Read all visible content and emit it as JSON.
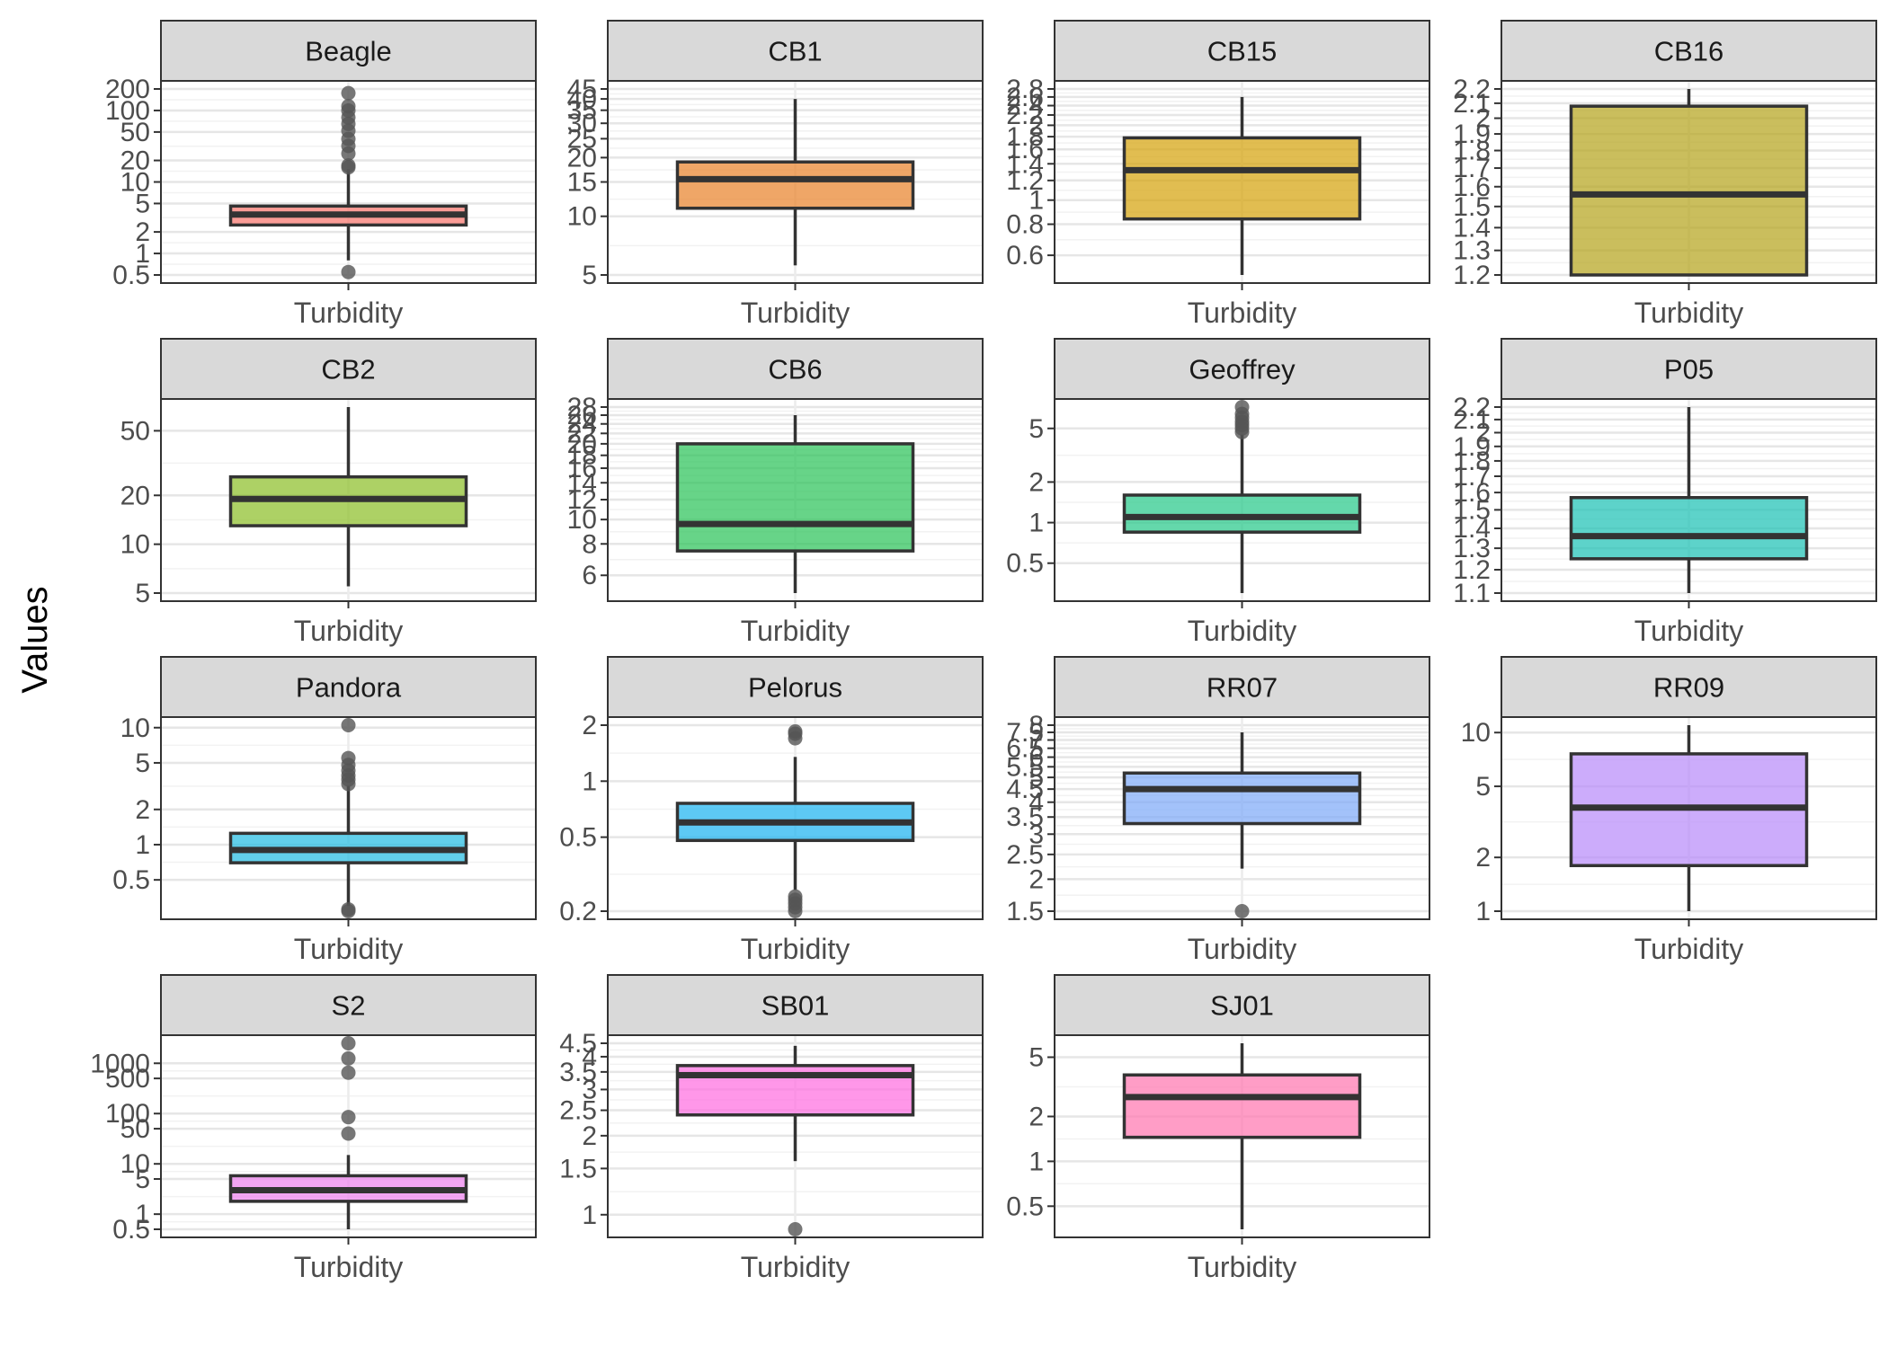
{
  "chart_data": {
    "type": "box",
    "ylabel": "Values",
    "xlabel": "",
    "y_scale": "log10",
    "grid": true,
    "category": "Turbidity",
    "panels": [
      {
        "name": "Beagle",
        "color": "#F8766D",
        "ticks": [
          {
            "v": 0.5,
            "label": "0.5"
          },
          {
            "v": 1,
            "label": "1"
          },
          {
            "v": 2,
            "label": "2"
          },
          {
            "v": 5,
            "label": "5"
          },
          {
            "v": 10,
            "label": "10"
          },
          {
            "v": 20,
            "label": "20"
          },
          {
            "v": 50,
            "label": "50"
          },
          {
            "v": 100,
            "label": "100"
          },
          {
            "v": 200,
            "label": "200"
          }
        ],
        "box": {
          "whisker_low": 0.8,
          "q1": 2.5,
          "median": 3.5,
          "q3": 4.6,
          "whisker_high": 15
        },
        "outliers": [
          0.55,
          16,
          17,
          25,
          32,
          40,
          52,
          65,
          80,
          100,
          115,
          175
        ]
      },
      {
        "name": "CB1",
        "color": "#E9842C",
        "ticks": [
          {
            "v": 5,
            "label": "5"
          },
          {
            "v": 10,
            "label": "10"
          },
          {
            "v": 15,
            "label": "15"
          },
          {
            "v": 20,
            "label": "20"
          },
          {
            "v": 25,
            "label": "25"
          },
          {
            "v": 30,
            "label": "30"
          },
          {
            "v": 35,
            "label": "35"
          },
          {
            "v": 40,
            "label": "40"
          },
          {
            "v": 45,
            "label": "45"
          }
        ],
        "box": {
          "whisker_low": 5.6,
          "q1": 11,
          "median": 15.5,
          "q3": 19,
          "whisker_high": 40
        },
        "outliers": []
      },
      {
        "name": "CB15",
        "color": "#D6A30E",
        "ticks": [
          {
            "v": 0.6,
            "label": "0.6"
          },
          {
            "v": 0.8,
            "label": "0.8"
          },
          {
            "v": 1,
            "label": "1"
          },
          {
            "v": 1.2,
            "label": "1.2"
          },
          {
            "v": 1.4,
            "label": "1.4"
          },
          {
            "v": 1.6,
            "label": "1.6"
          },
          {
            "v": 1.8,
            "label": "1.8"
          },
          {
            "v": 2,
            "label": "2"
          },
          {
            "v": 2.2,
            "label": "2.2"
          },
          {
            "v": 2.4,
            "label": "2.4"
          },
          {
            "v": 2.6,
            "label": "2.6"
          },
          {
            "v": 2.8,
            "label": "2.8"
          }
        ],
        "box": {
          "whisker_low": 0.5,
          "q1": 0.84,
          "median": 1.32,
          "q3": 1.78,
          "whisker_high": 2.6
        },
        "outliers": []
      },
      {
        "name": "CB16",
        "color": "#B6A51E",
        "ticks": [
          {
            "v": 1.2,
            "label": "1.2"
          },
          {
            "v": 1.3,
            "label": "1.3"
          },
          {
            "v": 1.4,
            "label": "1.4"
          },
          {
            "v": 1.5,
            "label": "1.5"
          },
          {
            "v": 1.6,
            "label": "1.6"
          },
          {
            "v": 1.7,
            "label": "1.7"
          },
          {
            "v": 1.8,
            "label": "1.8"
          },
          {
            "v": 1.9,
            "label": "1.9"
          },
          {
            "v": 2.0,
            "label": "2"
          },
          {
            "v": 2.1,
            "label": "2.1"
          },
          {
            "v": 2.2,
            "label": "2.2"
          }
        ],
        "box": {
          "whisker_low": 1.2,
          "q1": 1.2,
          "median": 1.56,
          "q3": 2.08,
          "whisker_high": 2.2
        },
        "outliers": []
      },
      {
        "name": "CB2",
        "color": "#8EBF2A",
        "ticks": [
          {
            "v": 5,
            "label": "5"
          },
          {
            "v": 10,
            "label": "10"
          },
          {
            "v": 20,
            "label": "20"
          },
          {
            "v": 50,
            "label": "50"
          }
        ],
        "box": {
          "whisker_low": 5.5,
          "q1": 13,
          "median": 19,
          "q3": 26,
          "whisker_high": 70
        },
        "outliers": []
      },
      {
        "name": "CB6",
        "color": "#2DC35A",
        "ticks": [
          {
            "v": 6,
            "label": "6"
          },
          {
            "v": 8,
            "label": "8"
          },
          {
            "v": 10,
            "label": "10"
          },
          {
            "v": 12,
            "label": "12"
          },
          {
            "v": 14,
            "label": "14"
          },
          {
            "v": 16,
            "label": "16"
          },
          {
            "v": 18,
            "label": "18"
          },
          {
            "v": 20,
            "label": "20"
          },
          {
            "v": 22,
            "label": "22"
          },
          {
            "v": 24,
            "label": "24"
          },
          {
            "v": 26,
            "label": "26"
          },
          {
            "v": 28,
            "label": "28"
          }
        ],
        "box": {
          "whisker_low": 5.1,
          "q1": 7.5,
          "median": 9.6,
          "q3": 20,
          "whisker_high": 26
        },
        "outliers": []
      },
      {
        "name": "Geoffrey",
        "color": "#28C98A",
        "ticks": [
          {
            "v": 0.5,
            "label": "0.5"
          },
          {
            "v": 1,
            "label": "1"
          },
          {
            "v": 2,
            "label": "2"
          },
          {
            "v": 5,
            "label": "5"
          }
        ],
        "box": {
          "whisker_low": 0.3,
          "q1": 0.85,
          "median": 1.1,
          "q3": 1.6,
          "whisker_high": 4.5
        },
        "outliers": [
          4.7,
          5.0,
          5.3,
          5.6,
          6.0,
          6.4,
          7.2
        ]
      },
      {
        "name": "P05",
        "color": "#1FC2B5",
        "ticks": [
          {
            "v": 1.1,
            "label": "1.1"
          },
          {
            "v": 1.2,
            "label": "1.2"
          },
          {
            "v": 1.3,
            "label": "1.3"
          },
          {
            "v": 1.4,
            "label": "1.4"
          },
          {
            "v": 1.5,
            "label": "1.5"
          },
          {
            "v": 1.6,
            "label": "1.6"
          },
          {
            "v": 1.7,
            "label": "1.7"
          },
          {
            "v": 1.8,
            "label": "1.8"
          },
          {
            "v": 1.9,
            "label": "1.9"
          },
          {
            "v": 2.0,
            "label": "2"
          },
          {
            "v": 2.1,
            "label": "2.1"
          },
          {
            "v": 2.2,
            "label": "2.2"
          }
        ],
        "box": {
          "whisker_low": 1.1,
          "q1": 1.25,
          "median": 1.36,
          "q3": 1.57,
          "whisker_high": 2.2
        },
        "outliers": []
      },
      {
        "name": "Pandora",
        "color": "#25BCE2",
        "ticks": [
          {
            "v": 0.5,
            "label": "0.5"
          },
          {
            "v": 1,
            "label": "1"
          },
          {
            "v": 2,
            "label": "2"
          },
          {
            "v": 5,
            "label": "5"
          },
          {
            "v": 10,
            "label": "10"
          }
        ],
        "box": {
          "whisker_low": 0.3,
          "q1": 0.7,
          "median": 0.9,
          "q3": 1.25,
          "whisker_high": 3.2
        },
        "outliers": [
          0.27,
          0.28,
          3.3,
          3.6,
          3.9,
          4.3,
          4.8,
          5.5,
          10.5
        ]
      },
      {
        "name": "Pelorus",
        "color": "#1EB4F0",
        "ticks": [
          {
            "v": 0.2,
            "label": "0.2"
          },
          {
            "v": 0.5,
            "label": "0.5"
          },
          {
            "v": 1,
            "label": "1"
          },
          {
            "v": 2,
            "label": "2"
          }
        ],
        "box": {
          "whisker_low": 0.26,
          "q1": 0.48,
          "median": 0.6,
          "q3": 0.76,
          "whisker_high": 1.35
        },
        "outliers": [
          0.2,
          0.21,
          0.22,
          0.23,
          0.24,
          1.7,
          1.8,
          1.85
        ]
      },
      {
        "name": "RR07",
        "color": "#7FAAF8",
        "ticks": [
          {
            "v": 1.5,
            "label": "1.5"
          },
          {
            "v": 2,
            "label": "2"
          },
          {
            "v": 2.5,
            "label": "2.5"
          },
          {
            "v": 3,
            "label": "3"
          },
          {
            "v": 3.5,
            "label": "3.5"
          },
          {
            "v": 4,
            "label": "4"
          },
          {
            "v": 4.5,
            "label": "4.5"
          },
          {
            "v": 5,
            "label": "5"
          },
          {
            "v": 5.5,
            "label": "5.5"
          },
          {
            "v": 6,
            "label": "6"
          },
          {
            "v": 6.5,
            "label": "6.5"
          },
          {
            "v": 7,
            "label": "7"
          },
          {
            "v": 7.5,
            "label": "7.5"
          },
          {
            "v": 8,
            "label": "8"
          }
        ],
        "box": {
          "whisker_low": 2.2,
          "q1": 3.3,
          "median": 4.5,
          "q3": 5.2,
          "whisker_high": 7.5
        },
        "outliers": [
          1.5
        ]
      },
      {
        "name": "RR09",
        "color": "#B98CFA",
        "ticks": [
          {
            "v": 1,
            "label": "1"
          },
          {
            "v": 2,
            "label": "2"
          },
          {
            "v": 5,
            "label": "5"
          },
          {
            "v": 10,
            "label": "10"
          }
        ],
        "box": {
          "whisker_low": 1.0,
          "q1": 1.8,
          "median": 3.8,
          "q3": 7.6,
          "whisker_high": 11
        },
        "outliers": []
      },
      {
        "name": "S2",
        "color": "#EE82EE",
        "ticks": [
          {
            "v": 0.5,
            "label": "0.5"
          },
          {
            "v": 1,
            "label": "1"
          },
          {
            "v": 5,
            "label": "5"
          },
          {
            "v": 10,
            "label": "10"
          },
          {
            "v": 50,
            "label": "50"
          },
          {
            "v": 100,
            "label": "100"
          },
          {
            "v": 500,
            "label": "500"
          },
          {
            "v": 1000,
            "label": "1000"
          }
        ],
        "box": {
          "whisker_low": 0.5,
          "q1": 1.8,
          "median": 3.0,
          "q3": 5.8,
          "whisker_high": 15
        },
        "outliers": [
          40,
          85,
          650,
          1250,
          2500
        ]
      },
      {
        "name": "SB01",
        "color": "#FF6FE0",
        "ticks": [
          {
            "v": 1,
            "label": "1"
          },
          {
            "v": 1.5,
            "label": "1.5"
          },
          {
            "v": 2,
            "label": "2"
          },
          {
            "v": 2.5,
            "label": "2.5"
          },
          {
            "v": 3,
            "label": "3"
          },
          {
            "v": 3.5,
            "label": "3.5"
          },
          {
            "v": 4,
            "label": "4"
          },
          {
            "v": 4.5,
            "label": "4.5"
          }
        ],
        "box": {
          "whisker_low": 1.6,
          "q1": 2.4,
          "median": 3.4,
          "q3": 3.7,
          "whisker_high": 4.4
        },
        "outliers": [
          0.88
        ]
      },
      {
        "name": "SJ01",
        "color": "#FF77B0",
        "ticks": [
          {
            "v": 0.5,
            "label": "0.5"
          },
          {
            "v": 1,
            "label": "1"
          },
          {
            "v": 2,
            "label": "2"
          },
          {
            "v": 5,
            "label": "5"
          }
        ],
        "box": {
          "whisker_low": 0.35,
          "q1": 1.45,
          "median": 2.7,
          "q3": 3.8,
          "whisker_high": 6.2
        },
        "outliers": []
      }
    ]
  }
}
